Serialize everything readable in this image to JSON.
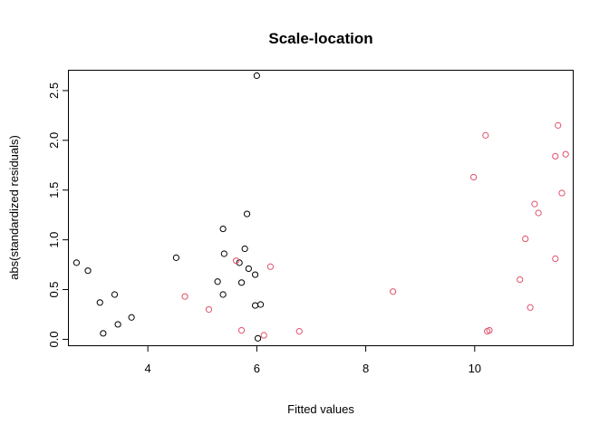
{
  "chart_data": {
    "type": "scatter",
    "title": "Scale-location",
    "xlabel": "Fitted values",
    "ylabel": "abs(standardized residuals)",
    "xlim": [
      2.55,
      11.8
    ],
    "ylim": [
      -0.06,
      2.7
    ],
    "x_ticks": [
      4,
      6,
      8,
      10
    ],
    "y_ticks": [
      0.0,
      0.5,
      1.0,
      1.5,
      2.0,
      2.5
    ],
    "x_tick_labels": [
      "4",
      "6",
      "8",
      "10"
    ],
    "y_tick_labels": [
      "0.0",
      "0.5",
      "1.0",
      "1.5",
      "2.0",
      "2.5"
    ],
    "grid": false,
    "series": [
      {
        "color": "#000000",
        "points": [
          [
            2.69,
            0.77
          ],
          [
            2.9,
            0.69
          ],
          [
            3.12,
            0.37
          ],
          [
            3.18,
            0.06
          ],
          [
            3.39,
            0.45
          ],
          [
            3.45,
            0.15
          ],
          [
            3.7,
            0.22
          ],
          [
            4.52,
            0.82
          ],
          [
            5.28,
            0.58
          ],
          [
            5.38,
            0.45
          ],
          [
            5.38,
            1.11
          ],
          [
            5.4,
            0.86
          ],
          [
            5.68,
            0.77
          ],
          [
            5.72,
            0.57
          ],
          [
            5.78,
            0.91
          ],
          [
            5.82,
            1.26
          ],
          [
            5.85,
            0.71
          ],
          [
            5.97,
            0.65
          ],
          [
            5.97,
            0.34
          ],
          [
            6.0,
            2.65
          ],
          [
            6.02,
            0.01
          ],
          [
            6.07,
            0.35
          ]
        ]
      },
      {
        "color": "#DF536B",
        "points": [
          [
            4.68,
            0.43
          ],
          [
            5.12,
            0.3
          ],
          [
            5.62,
            0.79
          ],
          [
            5.72,
            0.09
          ],
          [
            6.13,
            0.04
          ],
          [
            6.25,
            0.73
          ],
          [
            6.78,
            0.08
          ],
          [
            8.5,
            0.48
          ],
          [
            9.98,
            1.63
          ],
          [
            10.2,
            2.05
          ],
          [
            10.23,
            0.08
          ],
          [
            10.27,
            0.09
          ],
          [
            10.83,
            0.6
          ],
          [
            10.93,
            1.01
          ],
          [
            11.02,
            0.32
          ],
          [
            11.1,
            1.36
          ],
          [
            11.17,
            1.27
          ],
          [
            11.48,
            0.81
          ],
          [
            11.48,
            1.84
          ],
          [
            11.53,
            2.15
          ],
          [
            11.6,
            1.47
          ],
          [
            11.67,
            1.86
          ]
        ]
      }
    ]
  }
}
